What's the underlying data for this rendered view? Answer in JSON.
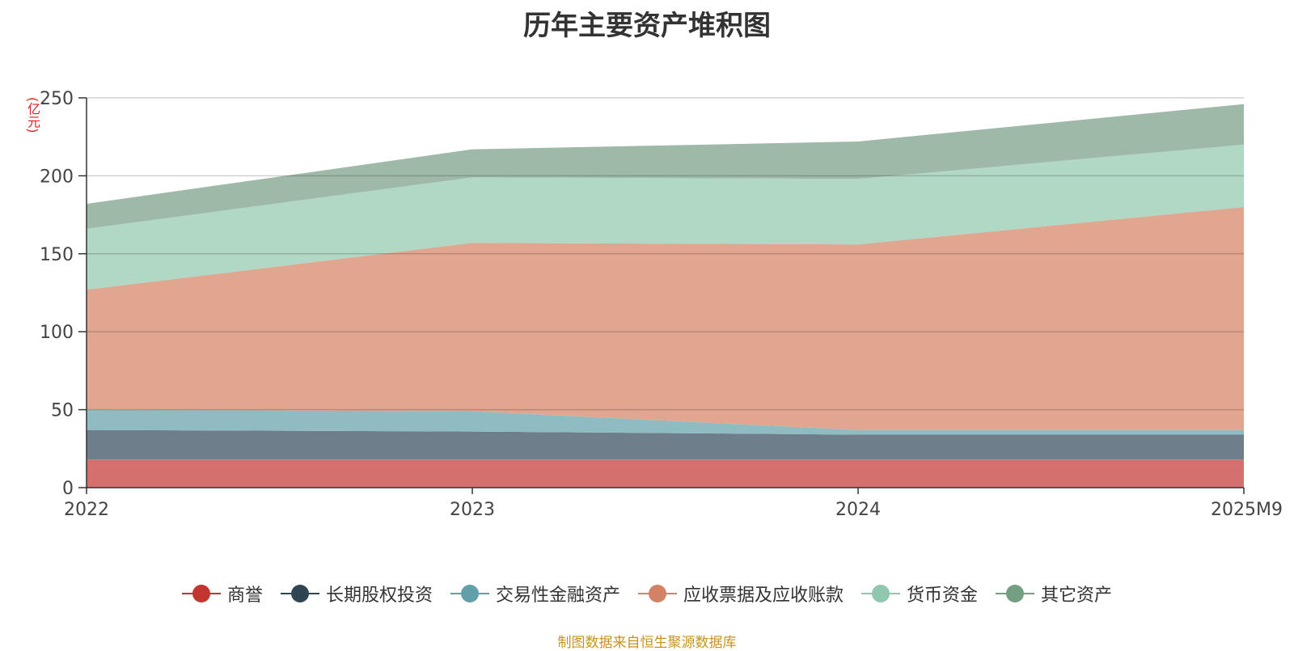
{
  "chart_data": {
    "type": "area",
    "stacked": true,
    "title": "历年主要资产堆积图",
    "unit_label": "(亿元)",
    "categories": [
      "2022",
      "2023",
      "2024",
      "2025M9"
    ],
    "ylim": [
      0,
      250
    ],
    "yticks": [
      0,
      50,
      100,
      150,
      200,
      250
    ],
    "grid": true,
    "legend_position": "bottom",
    "series": [
      {
        "name": "商誉",
        "color": "#c23531",
        "fill": "#d4706d",
        "values": [
          18,
          18,
          18,
          18
        ]
      },
      {
        "name": "长期股权投资",
        "color": "#2f4554",
        "fill": "#6e7e8a",
        "values": [
          19,
          18,
          16,
          16
        ]
      },
      {
        "name": "交易性金融资产",
        "color": "#61a0a8",
        "fill": "#8fbcc2",
        "values": [
          13,
          13,
          3,
          3
        ]
      },
      {
        "name": "应收票据及应收账款",
        "color": "#d48265",
        "fill": "#e0a690",
        "values": [
          77,
          108,
          119,
          143
        ]
      },
      {
        "name": "货币资金",
        "color": "#91c7ae",
        "fill": "#b1d7c5",
        "values": [
          39,
          42,
          42,
          40
        ]
      },
      {
        "name": "其它资产",
        "color": "#749f83",
        "fill": "#9eb9a7",
        "values": [
          16,
          18,
          24,
          26
        ]
      }
    ]
  },
  "source_text": "制图数据来自恒生聚源数据库"
}
